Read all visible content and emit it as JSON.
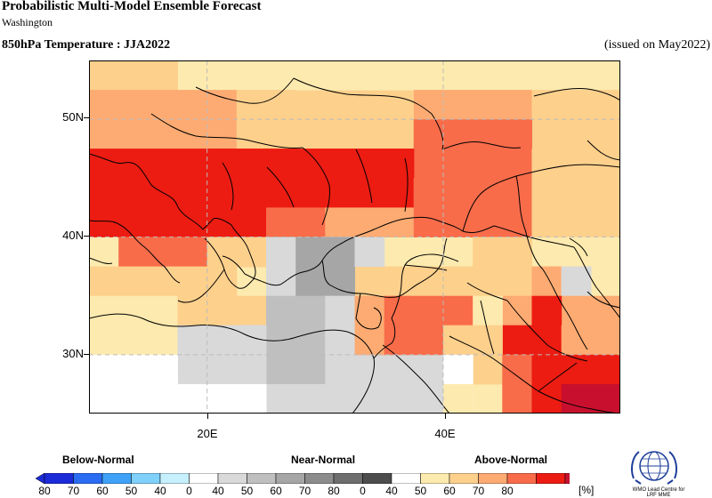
{
  "header": {
    "title": "Probabilistic Multi-Model Ensemble Forecast",
    "subtitle": "Washington",
    "variable": "850hPa Temperature : JJA2022",
    "issued": "(issued on May2022)"
  },
  "map": {
    "lat_ticks": [
      "50N",
      "40N",
      "30N"
    ],
    "lon_ticks": [
      "20E",
      "40E"
    ],
    "region": {
      "lon_min": 10,
      "lon_max": 55,
      "lat_min": 25,
      "lat_max": 55
    },
    "grid_step_deg": 2.5,
    "gridlines": "dashed",
    "coastlines": true
  },
  "legend": {
    "categories": [
      "Below-Normal",
      "Near-Normal",
      "Above-Normal"
    ],
    "below_labels": [
      "80",
      "70",
      "60",
      "50",
      "40"
    ],
    "near_labels": [
      "0",
      "40",
      "50",
      "60",
      "70",
      "80"
    ],
    "above_labels": [
      "0",
      "40",
      "50",
      "60",
      "70",
      "80"
    ],
    "unit": "[%]",
    "below_colors": [
      "#1c2bd8",
      "#2a6cf2",
      "#3fa2f8",
      "#7fd1fb",
      "#c6f0fd"
    ],
    "near_colors": [
      "#ffffff",
      "#d9d9d9",
      "#bfbfbf",
      "#a6a6a6",
      "#8c8c8c",
      "#6e6e6e",
      "#4d4d4d"
    ],
    "above_colors": [
      "#ffffff",
      "#fdeaae",
      "#fdd08c",
      "#fdab72",
      "#f86c4a",
      "#ec1c12",
      "#c8102e"
    ]
  },
  "logo": {
    "icon": "wmo-globe-icon",
    "text_line1": "WMO Lead Centre for",
    "text_line2": "LRF MME"
  },
  "colors": {
    "above_40": "#fdeaae",
    "above_50": "#fdd08c",
    "above_60": "#fdab72",
    "above_70": "#f86c4a",
    "above_80": "#ec1c12",
    "above_80plus": "#c8102e",
    "near_40": "#d9d9d9",
    "near_50": "#bfbfbf",
    "near_60": "#a6a6a6",
    "white": "#ffffff"
  }
}
